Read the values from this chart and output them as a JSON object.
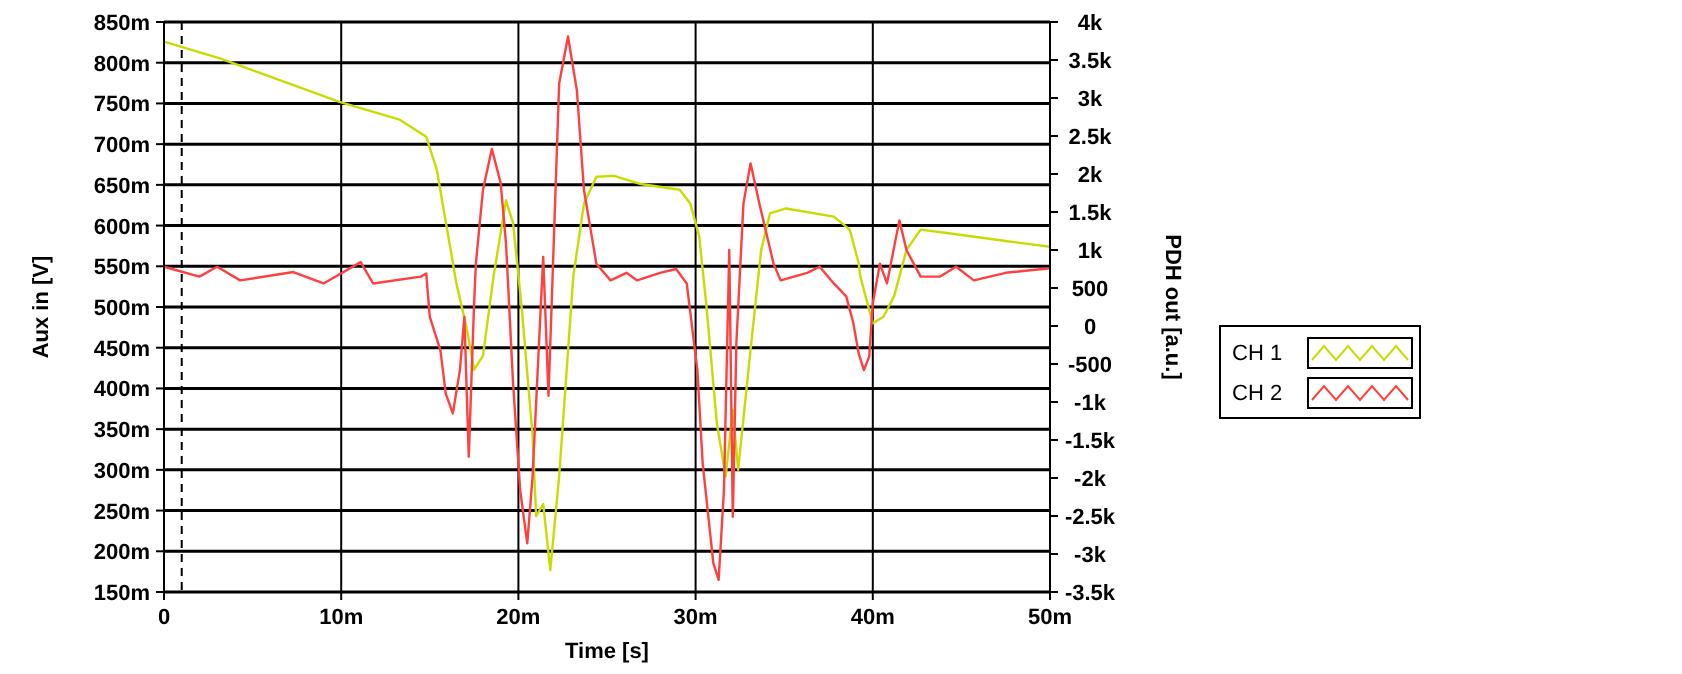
{
  "chart_data": {
    "type": "line",
    "xlabel": "Time [s]",
    "ylabel": "Aux in [V]",
    "y2label": "PDH out [a.u.]",
    "xlim": [
      0,
      50
    ],
    "xticks": [
      0,
      {
        "value": 10,
        "label": "10m"
      },
      {
        "value": 20,
        "label": "20m"
      },
      {
        "value": 30,
        "label": "30m"
      },
      {
        "value": 40,
        "label": "40m"
      },
      {
        "value": 50,
        "label": "50m"
      }
    ],
    "ylim": [
      150,
      850
    ],
    "yticks": [
      {
        "value": 150,
        "label": "150m"
      },
      {
        "value": 200,
        "label": "200m"
      },
      {
        "value": 250,
        "label": "250m"
      },
      {
        "value": 300,
        "label": "300m"
      },
      {
        "value": 350,
        "label": "350m"
      },
      {
        "value": 400,
        "label": "400m"
      },
      {
        "value": 450,
        "label": "450m"
      },
      {
        "value": 500,
        "label": "500m"
      },
      {
        "value": 550,
        "label": "550m"
      },
      {
        "value": 600,
        "label": "600m"
      },
      {
        "value": 650,
        "label": "650m"
      },
      {
        "value": 700,
        "label": "700m"
      },
      {
        "value": 750,
        "label": "750m"
      },
      {
        "value": 800,
        "label": "800m"
      },
      {
        "value": 850,
        "label": "850m"
      }
    ],
    "y2lim": [
      -3500,
      4000
    ],
    "y2ticks": [
      {
        "value": -3500,
        "label": "-3.5k"
      },
      {
        "value": -3000,
        "label": "-3k"
      },
      {
        "value": -2500,
        "label": "-2.5k"
      },
      {
        "value": -2000,
        "label": "-2k"
      },
      {
        "value": -1500,
        "label": "-1.5k"
      },
      {
        "value": -1000,
        "label": "-1k"
      },
      -500,
      0,
      500,
      {
        "value": 1000,
        "label": "1k"
      },
      {
        "value": 1500,
        "label": "1.5k"
      },
      {
        "value": 2000,
        "label": "2k"
      },
      {
        "value": 2500,
        "label": "2.5k"
      },
      {
        "value": 3000,
        "label": "3k"
      },
      {
        "value": 3500,
        "label": "3.5k"
      },
      {
        "value": 4000,
        "label": "4k"
      }
    ],
    "grid": true,
    "legend": "right",
    "marker": "none",
    "line_style": "solid",
    "ref_lines": [
      {
        "axis": "x",
        "value": 1,
        "line_style": "dashed",
        "color": "#000000"
      }
    ],
    "series": [
      {
        "name": "CH 1",
        "color": "#c8dc00",
        "x": [
          0,
          3.2,
          9.9,
          13.3,
          14.8,
          15.4,
          16.5,
          17.1,
          17.5,
          18,
          18.6,
          19.3,
          19.7,
          20.2,
          20.8,
          21,
          21.4,
          21.8,
          22.3,
          23.1,
          23.7,
          24.4,
          25.4,
          26.9,
          29.1,
          29.7,
          30.2,
          30.6,
          31.2,
          31.7,
          32.1,
          32.4,
          33.1,
          33.7,
          34.2,
          35.1,
          37.8,
          38.7,
          39.2,
          39.3,
          40,
          40.6,
          41.2,
          41.9,
          42.7,
          44.5,
          47.5,
          50
        ],
        "values": [
          826,
          805,
          752,
          730,
          709,
          668,
          529,
          472,
          423,
          440,
          538,
          631,
          603,
          496,
          342,
          243,
          258,
          177,
          292,
          538,
          627,
          660,
          661,
          651,
          644,
          627,
          587,
          504,
          357,
          292,
          374,
          300,
          447,
          570,
          615,
          621,
          611,
          595,
          554,
          537,
          480,
          488,
          513,
          570,
          595,
          590,
          581,
          574
        ]
      },
      {
        "name": "CH 2",
        "color": "#ff4040",
        "axis": "y2",
        "x": [
          0,
          2,
          3,
          4.3,
          7.3,
          9,
          11.1,
          11.8,
          14.5,
          14.8,
          15,
          15.6,
          15.9,
          16.3,
          16.7,
          16.95,
          17.2,
          17.5,
          17.6,
          18,
          18.5,
          19,
          19.3,
          19.7,
          20.1,
          20.5,
          20.8,
          21.2,
          21.4,
          21.7,
          22.3,
          22.8,
          23.3,
          23.7,
          24.4,
          25.2,
          26.1,
          26.7,
          28,
          28.9,
          29.5,
          30.1,
          30.4,
          31,
          31.3,
          31.6,
          31.9,
          32.1,
          32.3,
          32.7,
          33.1,
          33.6,
          34.4,
          34.8,
          36.3,
          37,
          37.8,
          38.5,
          38.9,
          39.2,
          39.5,
          39.8,
          40,
          40.4,
          40.8,
          41.5,
          41.9,
          42.7,
          43.8,
          44.7,
          45.7,
          47.5,
          50
        ],
        "values": [
          780,
          650,
          780,
          600,
          710,
          560,
          840,
          560,
          650,
          690,
          120,
          -320,
          -890,
          -1150,
          -580,
          120,
          -1720,
          300,
          820,
          1790,
          2330,
          1880,
          1090,
          -760,
          -2160,
          -2860,
          -1980,
          -50,
          910,
          -920,
          3190,
          3810,
          3100,
          1790,
          820,
          600,
          700,
          600,
          700,
          750,
          560,
          -580,
          -1810,
          -3120,
          -3340,
          -2160,
          1000,
          -2510,
          -230,
          1610,
          2140,
          1610,
          820,
          600,
          700,
          780,
          560,
          390,
          40,
          -360,
          -580,
          -400,
          300,
          820,
          560,
          1390,
          1000,
          650,
          650,
          780,
          600,
          700,
          760
        ]
      }
    ]
  }
}
